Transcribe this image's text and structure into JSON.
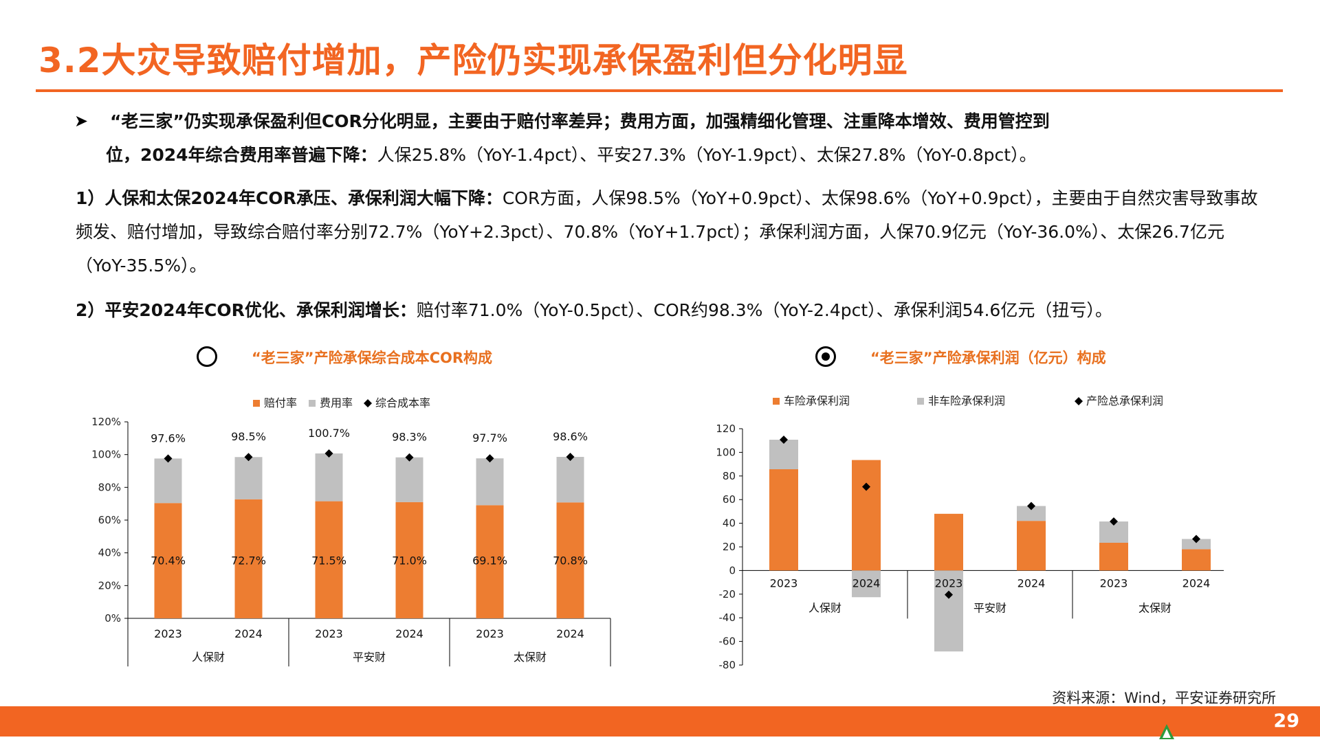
{
  "title": "3.2大灾导致赔付增加，产险仍实现承保盈利但分化明显",
  "bullets": {
    "b0_line1_bold": "“老三家”仍实现承保盈利但COR分化明显，主要由于赔付率差异；费用方面，加强精细化管理、注重降本增效、费用管控到",
    "b0_line2_bold": "位，2024年综合费用率普遍下降：",
    "b0_line2_rest": "人保25.8%（YoY-1.4pct）、平安27.3%（YoY-1.9pct）、太保27.8%（YoY-0.8pct）。",
    "p1_bold": "1）人保和太保2024年COR承压、承保利润大幅下降：",
    "p1_rest": "COR方面，人保98.5%（YoY+0.9pct）、太保98.6%（YoY+0.9pct），主要由于自然灾害导致事故频发、赔付增加，导致综合赔付率分别72.7%（YoY+2.3pct）、70.8%（YoY+1.7pct）；承保利润方面，人保70.9亿元（YoY-36.0%）、太保26.7亿元（YoY-35.5%）。",
    "p2_bold": "2）平安2024年COR优化、承保利润增长：",
    "p2_rest": "赔付率71.0%（YoY-0.5pct）、COR约98.3%（YoY-2.4pct）、承保利润54.6亿元（扭亏）。"
  },
  "colors": {
    "orange": "#ED7D31",
    "gray": "#C0C0C0",
    "accent": "#F26522"
  },
  "chart_data": [
    {
      "type": "bar",
      "title": "“老三家”产险承保综合成本COR构成",
      "legend": [
        "赔付率",
        "费用率",
        "综合成本率"
      ],
      "legend_position": "top",
      "groups": [
        "人保财",
        "平安财",
        "太保财"
      ],
      "categories": [
        "2023",
        "2024",
        "2023",
        "2024",
        "2023",
        "2024"
      ],
      "series": [
        {
          "name": "赔付率",
          "values": [
            70.4,
            72.7,
            71.5,
            71.0,
            69.1,
            70.8
          ]
        },
        {
          "name": "费用率",
          "values": [
            27.2,
            25.8,
            29.2,
            27.3,
            28.6,
            27.8
          ]
        },
        {
          "name": "综合成本率",
          "values": [
            97.6,
            98.5,
            100.7,
            98.3,
            97.7,
            98.6
          ]
        }
      ],
      "bottom_labels": [
        "70.4%",
        "72.7%",
        "71.5%",
        "71.0%",
        "69.1%",
        "70.8%"
      ],
      "top_labels": [
        "97.6%",
        "98.5%",
        "100.7%",
        "98.3%",
        "97.7%",
        "98.6%"
      ],
      "yticks": [
        "0%",
        "20%",
        "40%",
        "60%",
        "80%",
        "100%",
        "120%"
      ],
      "ylim": [
        0,
        120
      ]
    },
    {
      "type": "bar",
      "title": "“老三家”产险承保利润（亿元）构成",
      "legend": [
        "车险承保利润",
        "非车险承保利润",
        "产险总承保利润"
      ],
      "legend_position": "top",
      "groups": [
        "人保财",
        "平安财",
        "太保财"
      ],
      "categories": [
        "2023",
        "2024",
        "2023",
        "2024",
        "2023",
        "2024"
      ],
      "series": [
        {
          "name": "车险承保利润",
          "values": [
            85.7,
            93.5,
            48.0,
            42.0,
            23.5,
            18.0
          ]
        },
        {
          "name": "非车险承保利润",
          "values": [
            25.0,
            -22.6,
            -68.5,
            12.6,
            18.0,
            8.7
          ]
        },
        {
          "name": "产险总承保利润",
          "values": [
            110.7,
            70.9,
            -20.5,
            54.6,
            41.5,
            26.7
          ]
        }
      ],
      "yticks": [
        "-80",
        "-60",
        "-40",
        "-20",
        "0",
        "20",
        "40",
        "60",
        "80",
        "100",
        "120"
      ],
      "ylim": [
        -80,
        120
      ]
    }
  ],
  "footer": {
    "source": "资料来源：Wind，平安证券研究所",
    "page_number": "29"
  }
}
